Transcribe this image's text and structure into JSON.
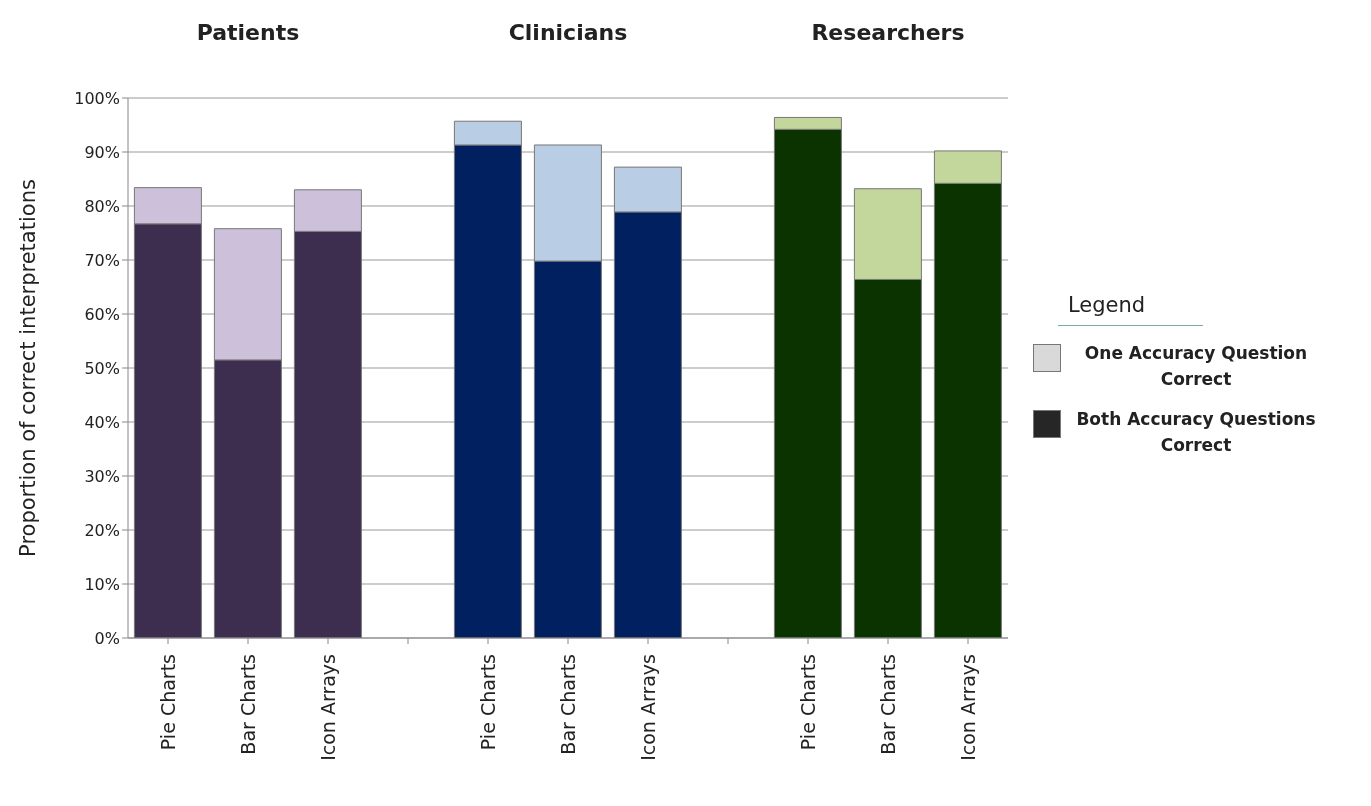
{
  "chart_data": {
    "type": "bar",
    "stacked": true,
    "ylabel": "Proportion of correct interpretations",
    "legend_title": "Legend",
    "legend": "right",
    "grid": "y",
    "annotations": [
      "Patients",
      "Clinicians",
      "Researchers"
    ],
    "categories": [
      "Pie Charts",
      "Bar Charts",
      "Icon Arrays",
      null,
      "Pie Charts",
      "Bar Charts",
      "Icon Arrays",
      null,
      "Pie Charts",
      "Bar Charts",
      "Icon Arrays"
    ],
    "series": [
      {
        "name": "Both Accuracy Questions Correct",
        "color": "#262626",
        "colors": [
          "#3d2e4f",
          "#3d2e4f",
          "#3d2e4f",
          null,
          "#002060",
          "#002060",
          "#002060",
          null,
          "#0a3300",
          "#0a3300",
          "#0a3300"
        ],
        "values": [
          76.7,
          51.5,
          75.3,
          null,
          91.3,
          69.8,
          78.9,
          null,
          94.2,
          66.4,
          84.2
        ]
      },
      {
        "name": "One Accuracy Question Correct",
        "color": "#d9d9d9",
        "colors": [
          "#ccc0da",
          "#ccc0da",
          "#ccc0da",
          null,
          "#b9cde5",
          "#b9cde5",
          "#b9cde5",
          null,
          "#c3d69b",
          "#c3d69b",
          "#c3d69b"
        ],
        "values": [
          6.7,
          24.3,
          7.7,
          null,
          4.4,
          21.5,
          8.3,
          null,
          2.2,
          16.8,
          6.0
        ]
      }
    ],
    "ylim": [
      0,
      100
    ],
    "yticks": [
      {
        "value": 0,
        "label": "0%"
      },
      {
        "value": 10,
        "label": "10%"
      },
      {
        "value": 20,
        "label": "20%"
      },
      {
        "value": 30,
        "label": "30%"
      },
      {
        "value": 40,
        "label": "40%"
      },
      {
        "value": 50,
        "label": "50%"
      },
      {
        "value": 60,
        "label": "60%"
      },
      {
        "value": 70,
        "label": "70%"
      },
      {
        "value": 80,
        "label": "80%"
      },
      {
        "value": 90,
        "label": "90%"
      },
      {
        "value": 100,
        "label": "100%"
      }
    ]
  }
}
